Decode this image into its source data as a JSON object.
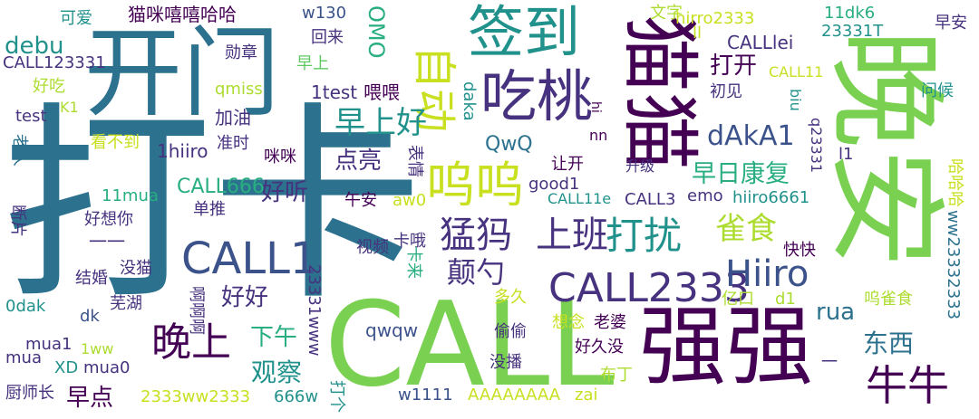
{
  "palette": {
    "viridis_dark": "#440154",
    "purple": "#46327e",
    "indigo": "#3b528b",
    "blue": "#365c8d",
    "steel": "#2c728e",
    "teal": "#21918c",
    "green_teal": "#28ae80",
    "green": "#5ec962",
    "lime": "#addc30",
    "yellow_green": "#c8e020"
  },
  "words": [
    {
      "text": "打卡",
      "color": "#2c728e"
    },
    {
      "text": "CALL",
      "color": "#7ad151"
    },
    {
      "text": "晚安",
      "color": "#7ad151"
    },
    {
      "text": "猫猫",
      "color": "#440154"
    },
    {
      "text": "开门",
      "color": "#2c728e"
    },
    {
      "text": "强强",
      "color": "#440154"
    },
    {
      "text": "签到",
      "color": "#21918c"
    },
    {
      "text": "吃桃",
      "color": "#46327e"
    },
    {
      "text": "自动",
      "color": "#c8e020"
    },
    {
      "text": "呜呜",
      "color": "#c8e020"
    },
    {
      "text": "CALL1",
      "color": "#3b528b"
    },
    {
      "text": "CALL2333",
      "color": "#46327e"
    },
    {
      "text": "Hiiro",
      "color": "#3b528b"
    },
    {
      "text": "猛犸",
      "color": "#46327e"
    },
    {
      "text": "上班",
      "color": "#46327e"
    },
    {
      "text": "打扰",
      "color": "#21918c"
    },
    {
      "text": "晚上",
      "color": "#440154"
    },
    {
      "text": "牛牛",
      "color": "#440154"
    },
    {
      "text": "早上好",
      "color": "#21918c"
    },
    {
      "text": "雀食",
      "color": "#addc30"
    },
    {
      "text": "颠勺",
      "color": "#46327e"
    },
    {
      "text": "早日康复",
      "color": "#28ae80"
    },
    {
      "text": "debu",
      "color": "#21918c"
    },
    {
      "text": "dAkA1",
      "color": "#3b528b"
    },
    {
      "text": "好听",
      "color": "#46327e"
    },
    {
      "text": "好好",
      "color": "#46327e"
    },
    {
      "text": "观察",
      "color": "#21918c"
    },
    {
      "text": "东西",
      "color": "#2c728e"
    },
    {
      "text": "rua",
      "color": "#2c728e"
    },
    {
      "text": "下午",
      "color": "#28ae80"
    },
    {
      "text": "点亮",
      "color": "#46327e"
    },
    {
      "text": "打开",
      "color": "#440154"
    },
    {
      "text": "早点",
      "color": "#440154"
    },
    {
      "text": "OMO",
      "color": "#28ae80"
    },
    {
      "text": "QwQ",
      "color": "#2c728e"
    },
    {
      "text": "CALL666",
      "color": "#28ae80"
    },
    {
      "text": "猫咪嘻嘻哈哈",
      "color": "#440154"
    },
    {
      "text": "CALL123331",
      "color": "#46327e"
    },
    {
      "text": "勋章",
      "color": "#46327e"
    },
    {
      "text": "加油",
      "color": "#46327e"
    },
    {
      "text": "1test",
      "color": "#46327e"
    },
    {
      "text": "喂喂",
      "color": "#440154"
    },
    {
      "text": "w130",
      "color": "#3b528b"
    },
    {
      "text": "回来",
      "color": "#46327e"
    },
    {
      "text": "早上",
      "color": "#5ec962"
    },
    {
      "text": "可爱",
      "color": "#21918c"
    },
    {
      "text": "qmiss",
      "color": "#addc30"
    },
    {
      "text": "好吃",
      "color": "#addc30"
    },
    {
      "text": "K1",
      "color": "#addc30"
    },
    {
      "text": "test",
      "color": "#46327e"
    },
    {
      "text": "老人",
      "color": "#2c728e"
    },
    {
      "text": "看不到",
      "color": "#c8e020"
    },
    {
      "text": "1hiiro",
      "color": "#46327e"
    },
    {
      "text": "准时",
      "color": "#46327e"
    },
    {
      "text": "咪咪",
      "color": "#440154"
    },
    {
      "text": "表情",
      "color": "#46327e"
    },
    {
      "text": "午安",
      "color": "#440154"
    },
    {
      "text": "11mua",
      "color": "#28ae80"
    },
    {
      "text": "断片",
      "color": "#46327e"
    },
    {
      "text": "好想你",
      "color": "#46327e"
    },
    {
      "text": "单推",
      "color": "#46327e"
    },
    {
      "text": "一一",
      "color": "#46327e"
    },
    {
      "text": "没猫",
      "color": "#46327e"
    },
    {
      "text": "结婚",
      "color": "#46327e"
    },
    {
      "text": "芜湖",
      "color": "#46327e"
    },
    {
      "text": "啊啊啊",
      "color": "#46327e"
    },
    {
      "text": "0dak",
      "color": "#21918c"
    },
    {
      "text": "dk",
      "color": "#3b528b"
    },
    {
      "text": "mua1",
      "color": "#46327e"
    },
    {
      "text": "1ww",
      "color": "#addc30"
    },
    {
      "text": "mua",
      "color": "#46327e"
    },
    {
      "text": "XD",
      "color": "#21918c"
    },
    {
      "text": "mua0",
      "color": "#46327e"
    },
    {
      "text": "厨师长",
      "color": "#46327e"
    },
    {
      "text": "2333ww2333",
      "color": "#c8e020"
    },
    {
      "text": "666w",
      "color": "#21918c"
    },
    {
      "text": "打个",
      "color": "#21918c"
    },
    {
      "text": "23331www",
      "color": "#46327e"
    },
    {
      "text": "qwqw",
      "color": "#3b528b"
    },
    {
      "text": "卡哦",
      "color": "#46327e"
    },
    {
      "text": "视频",
      "color": "#46327e"
    },
    {
      "text": "卡来",
      "color": "#28ae80"
    },
    {
      "text": "aw0",
      "color": "#c8e020"
    },
    {
      "text": "good1",
      "color": "#46327e"
    },
    {
      "text": "让开",
      "color": "#440154"
    },
    {
      "text": "daka",
      "color": "#21918c"
    },
    {
      "text": "文字",
      "color": "#addc30"
    },
    {
      "text": "hirro2333",
      "color": "#c8e020"
    },
    {
      "text": "ll",
      "color": "#c8e020"
    },
    {
      "text": "CALLlei",
      "color": "#46327e"
    },
    {
      "text": "11dk6",
      "color": "#28ae80"
    },
    {
      "text": "23331T",
      "color": "#21918c"
    },
    {
      "text": "早安",
      "color": "#46327e"
    },
    {
      "text": "CALL11",
      "color": "#c8e020"
    },
    {
      "text": "biu",
      "color": "#21918c"
    },
    {
      "text": "初见",
      "color": "#46327e"
    },
    {
      "text": "问候",
      "color": "#21918c"
    },
    {
      "text": "nn",
      "color": "#440154"
    },
    {
      "text": "hi",
      "color": "#440154"
    },
    {
      "text": "q23331",
      "color": "#46327e"
    },
    {
      "text": "l1",
      "color": "#46327e"
    },
    {
      "text": "哈哈哈",
      "color": "#c8e020"
    },
    {
      "text": "ww23332333",
      "color": "#2c728e"
    },
    {
      "text": "升级",
      "color": "#46327e"
    },
    {
      "text": "CALL11e",
      "color": "#21918c"
    },
    {
      "text": "CALL3",
      "color": "#46327e"
    },
    {
      "text": "emo",
      "color": "#46327e"
    },
    {
      "text": "hiiro6661",
      "color": "#21918c"
    },
    {
      "text": "快快",
      "color": "#440154"
    },
    {
      "text": "亿口",
      "color": "#addc30"
    },
    {
      "text": "d1",
      "color": "#addc30"
    },
    {
      "text": "呜雀食",
      "color": "#addc30"
    },
    {
      "text": "多久",
      "color": "#c8e020"
    },
    {
      "text": "想念",
      "color": "#c8e020"
    },
    {
      "text": "老婆",
      "color": "#440154"
    },
    {
      "text": "偷偷",
      "color": "#46327e"
    },
    {
      "text": "好久没",
      "color": "#440154"
    },
    {
      "text": "没播",
      "color": "#46327e"
    },
    {
      "text": "布丁",
      "color": "#addc30"
    },
    {
      "text": "一",
      "color": "#46327e"
    },
    {
      "text": "w1111",
      "color": "#3b528b"
    },
    {
      "text": "AAAAAAAA",
      "color": "#c8e020"
    },
    {
      "text": "zai",
      "color": "#c8e020"
    }
  ]
}
